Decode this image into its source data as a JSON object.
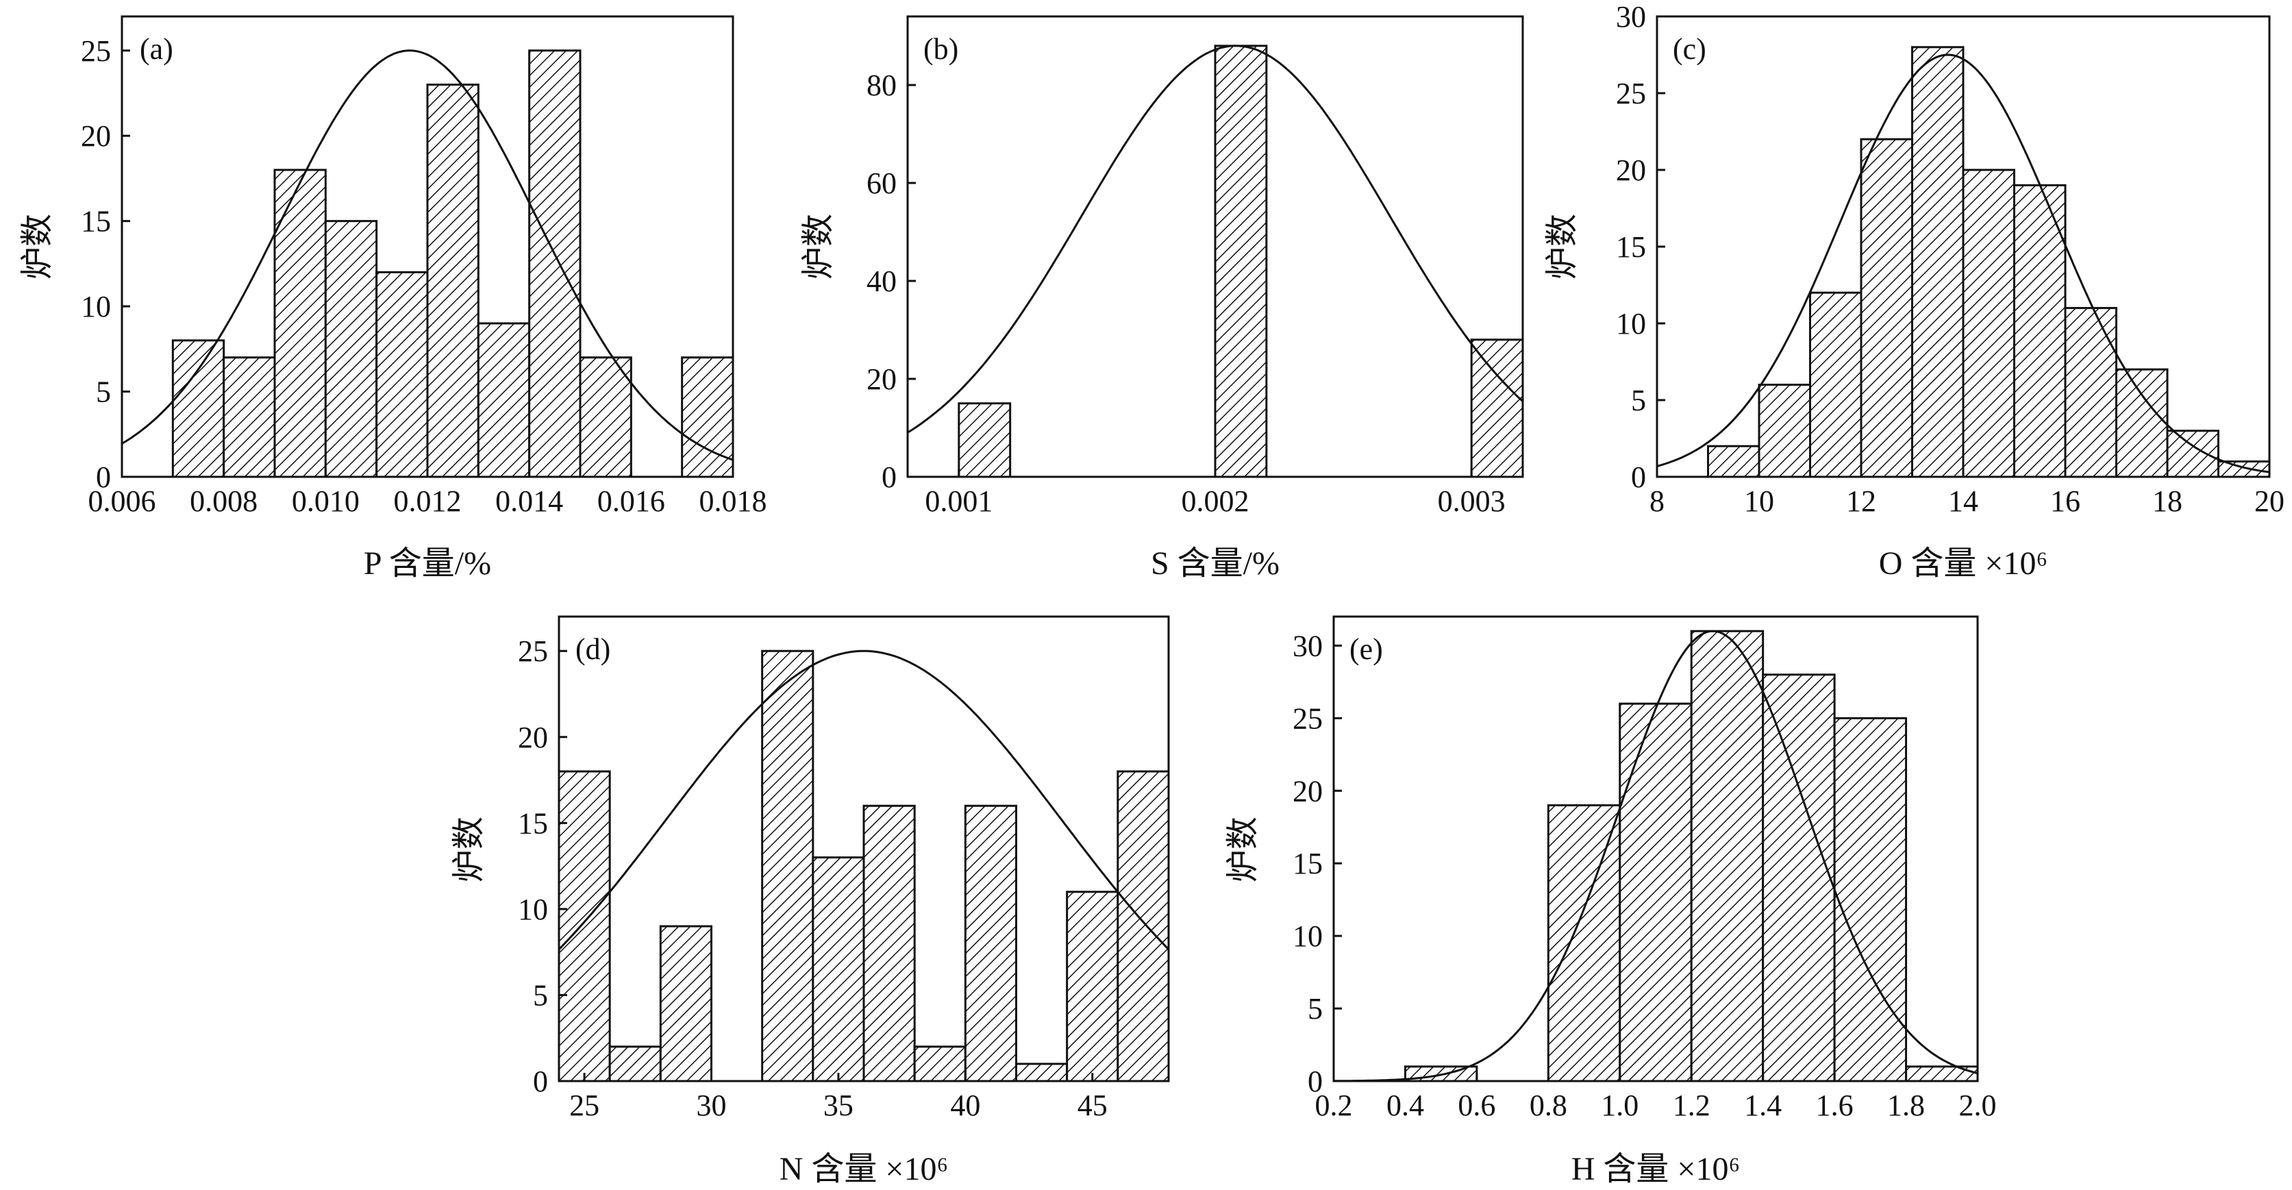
{
  "chart_data": [
    {
      "type": "bar",
      "panel": "(a)",
      "xlabel": "P 含量/%",
      "ylabel": "炉数",
      "xlim": [
        0.006,
        0.018
      ],
      "ylim": [
        0,
        27
      ],
      "xticks": [
        0.006,
        0.008,
        0.01,
        0.012,
        0.014,
        0.016,
        0.018
      ],
      "xtick_labels": [
        "0.006",
        "0.008",
        "0.010",
        "0.012",
        "0.014",
        "0.016",
        "0.018"
      ],
      "yticks": [
        0,
        5,
        10,
        15,
        20,
        25
      ],
      "bin_width": 0.001,
      "bins": [
        0.007,
        0.008,
        0.009,
        0.01,
        0.011,
        0.012,
        0.013,
        0.014,
        0.015,
        0.017
      ],
      "values": [
        8,
        7,
        18,
        15,
        12,
        23,
        9,
        25,
        7,
        7
      ],
      "fit": {
        "mean": 0.01165,
        "sd": 0.0025,
        "peak": 25
      }
    },
    {
      "type": "bar",
      "panel": "(b)",
      "xlabel": "S 含量/%",
      "ylabel": "炉数",
      "xlim": [
        0.0008,
        0.0032
      ],
      "ylim": [
        0,
        94
      ],
      "xticks": [
        0.001,
        0.002,
        0.003
      ],
      "xtick_labels": [
        "0.001",
        "0.002",
        "0.003"
      ],
      "yticks": [
        0,
        20,
        40,
        60,
        80
      ],
      "bin_width": 0.0002,
      "bins": [
        0.001,
        0.002,
        0.003
      ],
      "values": [
        15,
        88,
        28
      ],
      "fit": {
        "mean": 0.00208,
        "sd": 0.0006,
        "peak": 88
      }
    },
    {
      "type": "bar",
      "panel": "(c)",
      "xlabel": "O 含量 ×10⁶",
      "ylabel": "炉数",
      "xlim": [
        8,
        20
      ],
      "ylim": [
        0,
        30
      ],
      "xticks": [
        8,
        10,
        12,
        14,
        16,
        18,
        20
      ],
      "xtick_labels": [
        "8",
        "10",
        "12",
        "14",
        "16",
        "18",
        "20"
      ],
      "yticks": [
        0,
        5,
        10,
        15,
        20,
        25,
        30
      ],
      "bin_width": 1,
      "bins": [
        9,
        10,
        11,
        12,
        13,
        14,
        15,
        16,
        17,
        18,
        19
      ],
      "values": [
        2,
        6,
        12,
        22,
        28,
        20,
        19,
        11,
        7,
        3,
        1
      ],
      "fit": {
        "mean": 13.7,
        "sd": 2.1,
        "peak": 27.5
      }
    },
    {
      "type": "bar",
      "panel": "(d)",
      "xlabel": "N 含量 ×10⁶",
      "ylabel": "炉数",
      "xlim": [
        24,
        48
      ],
      "ylim": [
        0,
        27
      ],
      "xticks": [
        25,
        30,
        35,
        40,
        45
      ],
      "xtick_labels": [
        "25",
        "30",
        "35",
        "40",
        "45"
      ],
      "yticks": [
        0,
        5,
        10,
        15,
        20,
        25
      ],
      "bin_width": 2,
      "bins": [
        24,
        26,
        28,
        32,
        34,
        36,
        38,
        40,
        42,
        44,
        46
      ],
      "values": [
        18,
        2,
        9,
        25,
        13,
        16,
        2,
        16,
        1,
        11,
        18
      ],
      "fit": {
        "mean": 36,
        "sd": 7.8,
        "peak": 25
      }
    },
    {
      "type": "bar",
      "panel": "(e)",
      "xlabel": "H 含量 ×10⁶",
      "ylabel": "炉数",
      "xlim": [
        0.2,
        2.0
      ],
      "ylim": [
        0,
        32
      ],
      "xticks": [
        0.2,
        0.4,
        0.6,
        0.8,
        1.0,
        1.2,
        1.4,
        1.6,
        1.8,
        2.0
      ],
      "xtick_labels": [
        "0.2",
        "0.4",
        "0.6",
        "0.8",
        "1.0",
        "1.2",
        "1.4",
        "1.6",
        "1.8",
        "2.0"
      ],
      "yticks": [
        0,
        5,
        10,
        15,
        20,
        25,
        30
      ],
      "bin_width": 0.2,
      "bins": [
        0.4,
        0.8,
        1.0,
        1.2,
        1.4,
        1.6,
        1.8
      ],
      "values": [
        1,
        19,
        26,
        31,
        28,
        25,
        1
      ],
      "fit": {
        "mean": 1.26,
        "sd": 0.26,
        "peak": 31
      }
    }
  ]
}
